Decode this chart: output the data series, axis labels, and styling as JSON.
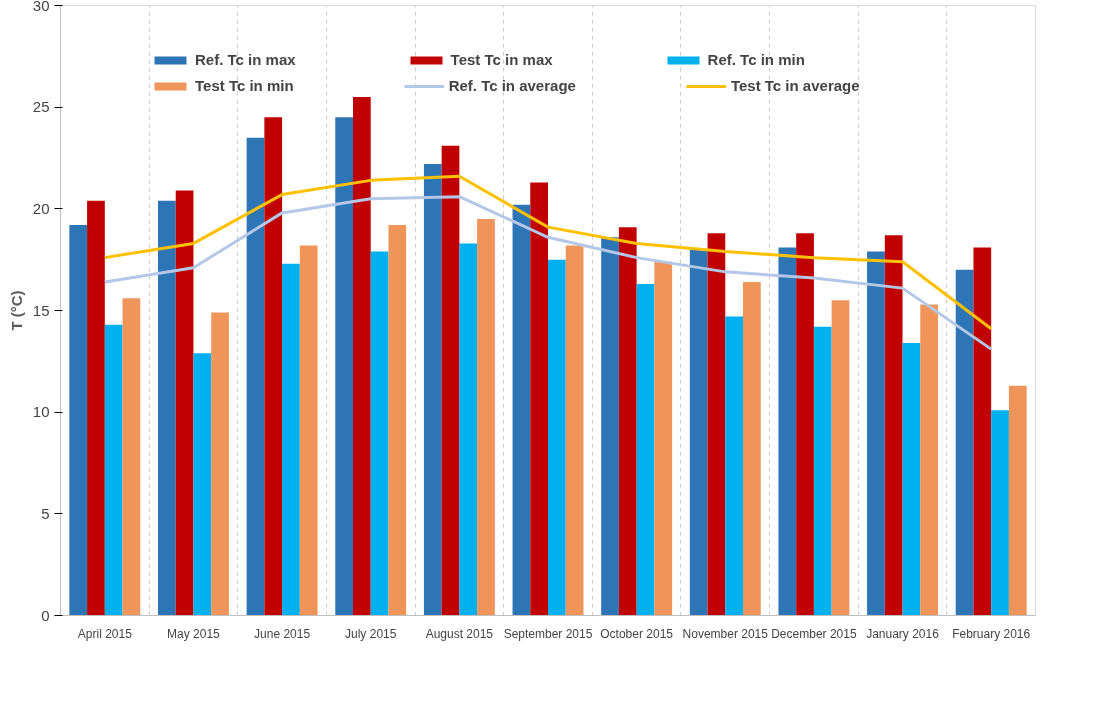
{
  "chart_data": {
    "type": "bar",
    "ylabel": "T (°C)",
    "categories": [
      "April 2015",
      "May 2015",
      "June 2015",
      "July 2015",
      "August 2015",
      "September 2015",
      "October 2015",
      "November 2015",
      "December 2015",
      "January 2016",
      "February 2016"
    ],
    "series": [
      {
        "name": "Ref. Tc in max",
        "color": "#2e75b6",
        "values": [
          19.2,
          20.4,
          23.5,
          24.5,
          22.2,
          20.2,
          18.6,
          18.0,
          18.1,
          17.9,
          17.0
        ]
      },
      {
        "name": "Test Tc in max",
        "color": "#c00000",
        "values": [
          20.4,
          20.9,
          24.5,
          25.5,
          23.1,
          21.3,
          19.1,
          18.8,
          18.8,
          18.7,
          18.1
        ]
      },
      {
        "name": "Ref. Tc in min",
        "color": "#00b0f0",
        "values": [
          14.3,
          12.9,
          17.3,
          17.9,
          18.3,
          17.5,
          16.3,
          14.7,
          14.2,
          13.4,
          10.1
        ]
      },
      {
        "name": "Test Tc in min",
        "color": "#f0955a",
        "values": [
          15.6,
          14.9,
          18.2,
          19.2,
          19.5,
          18.2,
          17.4,
          16.4,
          15.5,
          15.3,
          11.3
        ]
      },
      {
        "name": "Ref. Tc in average",
        "color": "#b4c7e7",
        "type": "line",
        "values": [
          16.4,
          17.1,
          19.8,
          20.5,
          20.6,
          18.6,
          17.6,
          16.9,
          16.6,
          16.1,
          13.1
        ]
      },
      {
        "name": "Test Tc in average",
        "color": "#ffc000",
        "type": "line",
        "values": [
          17.6,
          18.3,
          20.7,
          21.4,
          21.6,
          19.1,
          18.3,
          17.9,
          17.6,
          17.4,
          14.1
        ]
      }
    ],
    "ylim": [
      0,
      30
    ],
    "yticks": [
      0,
      5,
      10,
      15,
      20,
      25,
      30
    ],
    "grid": "x",
    "legend": "top",
    "marker": "none",
    "line_style": "solid"
  }
}
